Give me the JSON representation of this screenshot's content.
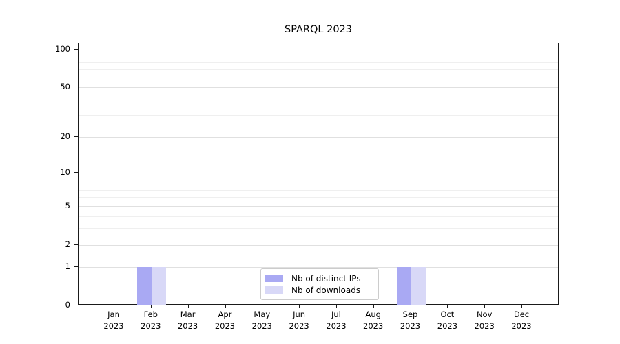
{
  "figure": {
    "background": "#ffffff"
  },
  "chart_data": {
    "type": "bar",
    "title": "SPARQL 2023",
    "x_categories": [
      "Jan 2023",
      "Feb 2023",
      "Mar 2023",
      "Apr 2023",
      "May 2023",
      "Jun 2023",
      "Jul 2023",
      "Aug 2023",
      "Sep 2023",
      "Oct 2023",
      "Nov 2023",
      "Dec 2023"
    ],
    "series": [
      {
        "name": "Nb of distinct IPs",
        "color": "#a9a9f3",
        "values": [
          0,
          1,
          0,
          0,
          0,
          0,
          0,
          0,
          1,
          0,
          0,
          0
        ]
      },
      {
        "name": "Nb of downloads",
        "color": "#d8d8f7",
        "values": [
          0,
          1,
          0,
          0,
          0,
          0,
          0,
          0,
          1,
          0,
          0,
          0
        ]
      }
    ],
    "yscale": "log1p",
    "ylim": [
      0,
      112
    ],
    "y_tick_values": [
      0,
      1,
      2,
      5,
      10,
      20,
      50,
      100
    ],
    "y_tick_labels": [
      "0",
      "1",
      "2",
      "5",
      "10",
      "20",
      "50",
      "100"
    ],
    "y_minor_gridlines": [
      3,
      4,
      6,
      7,
      8,
      9,
      30,
      40,
      60,
      70,
      80,
      90
    ],
    "grid": "horizontal",
    "legend_position": "lower center"
  },
  "colors": {
    "spine": "#1a1a1a",
    "grid_major": "#e0e0e0",
    "grid_minor": "#efefef",
    "legend_border": "#cccccc",
    "text": "#000000"
  }
}
